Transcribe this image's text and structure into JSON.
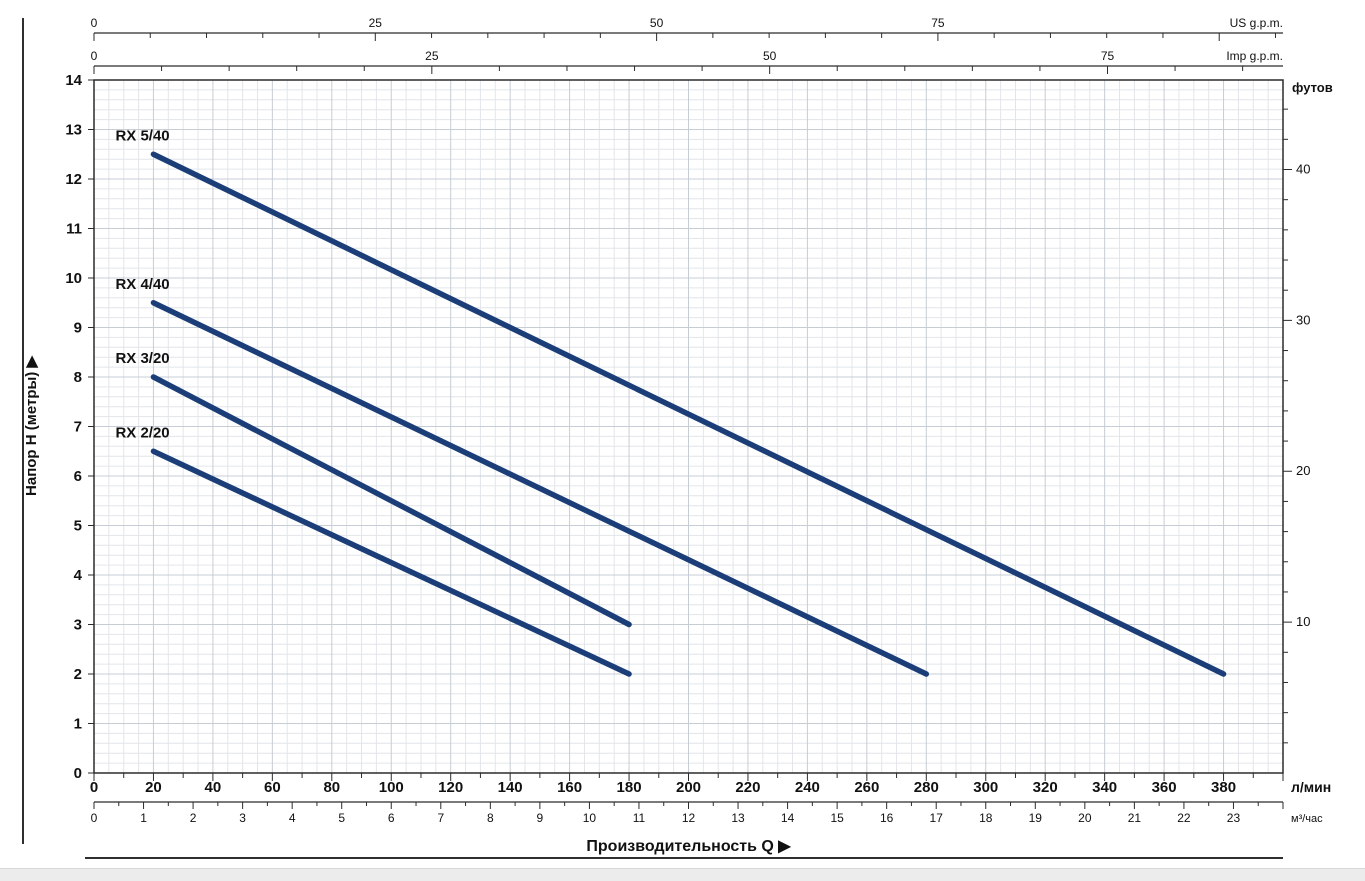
{
  "chart_data": {
    "type": "line",
    "xlabel": "Производительность Q ▶",
    "ylabel": "Напор H (метры)  ▶",
    "x_range_l_min": [
      0,
      400
    ],
    "y_range_m": [
      0,
      14
    ],
    "grid": "minor+major",
    "legend": "inline-curve-labels",
    "series": [
      {
        "name": "RX 5/40",
        "points_l_min_m": [
          [
            20,
            12.5
          ],
          [
            380,
            2
          ]
        ]
      },
      {
        "name": "RX 4/40",
        "points_l_min_m": [
          [
            20,
            9.5
          ],
          [
            280,
            2
          ]
        ]
      },
      {
        "name": "RX 3/20",
        "points_l_min_m": [
          [
            20,
            8
          ],
          [
            180,
            3
          ]
        ]
      },
      {
        "name": "RX 2/20",
        "points_l_min_m": [
          [
            20,
            6.5
          ],
          [
            180,
            2
          ]
        ]
      }
    ],
    "axes": {
      "top_us_gpm": {
        "unit": "US g.p.m.",
        "tick_labels": [
          0,
          25,
          50,
          75
        ]
      },
      "top_imp_gpm": {
        "unit": "Imp g.p.m.",
        "tick_labels": [
          0,
          25,
          50,
          75
        ]
      },
      "bottom_l_min": {
        "unit": "л/мин",
        "tick_labels": [
          0,
          20,
          40,
          60,
          80,
          100,
          120,
          140,
          160,
          180,
          200,
          220,
          240,
          260,
          280,
          300,
          320,
          340,
          360,
          380
        ]
      },
      "bottom_m3_h": {
        "unit": "м³/час",
        "tick_labels": [
          0,
          1,
          2,
          3,
          4,
          5,
          6,
          7,
          8,
          9,
          10,
          11,
          12,
          13,
          14,
          15,
          16,
          17,
          18,
          19,
          20,
          21,
          22,
          23
        ]
      },
      "left_m": {
        "tick_labels": [
          0,
          1,
          2,
          3,
          4,
          5,
          6,
          7,
          8,
          9,
          10,
          11,
          12,
          13,
          14
        ]
      },
      "right_ft": {
        "unit": "футов",
        "tick_labels": [
          10,
          20,
          30,
          40
        ]
      }
    },
    "colors": {
      "curve": "#1c3e78",
      "axis": "#2b2b2b",
      "text": "#111111",
      "grid_minor": "#e2e6ea",
      "grid_major": "#c7cdd4"
    }
  }
}
